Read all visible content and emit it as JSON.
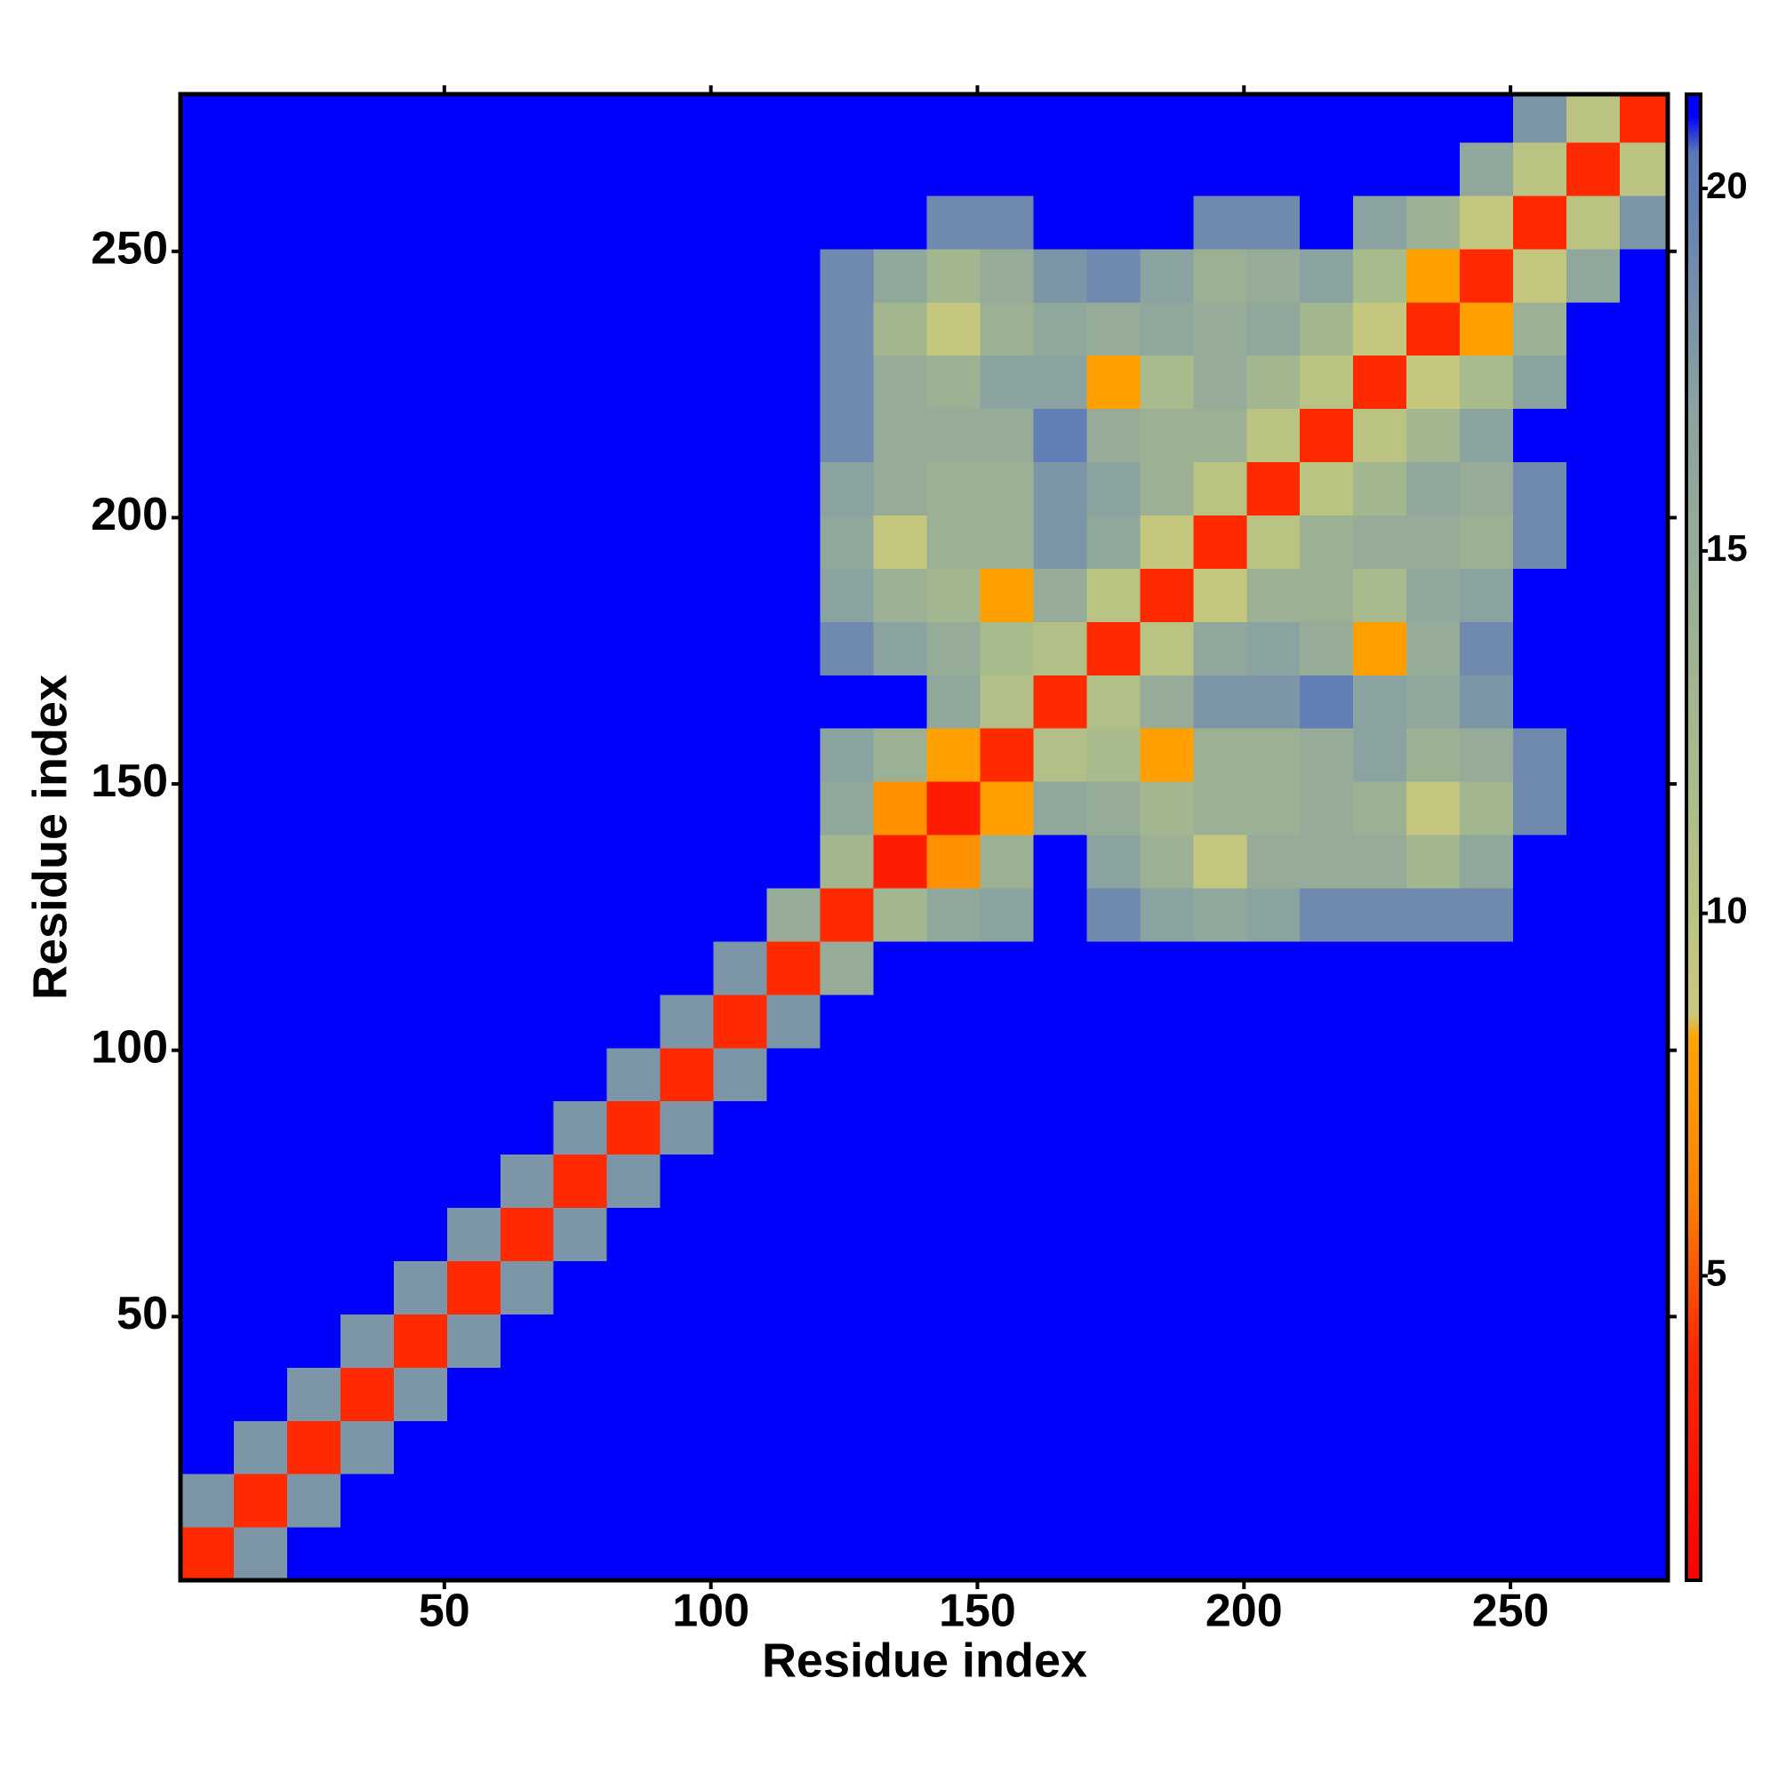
{
  "chart_data": {
    "type": "heatmap",
    "xlabel": "Residue index",
    "ylabel": "Residue index",
    "xlim": [
      0.5,
      279.5
    ],
    "ylim": [
      0.5,
      279.5
    ],
    "xticks": [
      50,
      100,
      150,
      200,
      250
    ],
    "yticks": [
      50,
      100,
      150,
      200,
      250
    ],
    "zlim": [
      0.8,
      21.3
    ],
    "zticks": [
      5,
      10,
      15,
      20
    ],
    "colorscale": [
      [
        0.8,
        "#ff0000"
      ],
      [
        4,
        "#ff2a00"
      ],
      [
        6,
        "#ff7f00"
      ],
      [
        8.3,
        "#ffa500"
      ],
      [
        8.6,
        "#c9c97c"
      ],
      [
        12,
        "#a8bb8c"
      ],
      [
        17,
        "#8aa2a0"
      ],
      [
        20.5,
        "#5a78b8"
      ],
      [
        21,
        "#0000ff"
      ]
    ],
    "x_bins": [
      0.5,
      10.5,
      20.5,
      30.5,
      40.5,
      50.5,
      60.5,
      70.5,
      80.5,
      90.5,
      100.5,
      110.5,
      120.5,
      130.5,
      140.5,
      150.5,
      160.5,
      170.5,
      180.5,
      190.5,
      200.5,
      210.5,
      220.5,
      230.5,
      240.5,
      250.5,
      260.5,
      270.5,
      279.5
    ],
    "y_bins": [
      0.5,
      10.5,
      20.5,
      30.5,
      40.5,
      50.5,
      60.5,
      70.5,
      80.5,
      90.5,
      100.5,
      110.5,
      120.5,
      130.5,
      140.5,
      150.5,
      160.5,
      170.5,
      180.5,
      190.5,
      200.5,
      210.5,
      220.5,
      230.5,
      240.5,
      250.5,
      260.5,
      270.5,
      279.5
    ],
    "z": [
      [
        4,
        18,
        21,
        21,
        21,
        21,
        21,
        21,
        21,
        21,
        21,
        21,
        21,
        21,
        21,
        21,
        21,
        21,
        21,
        21,
        21,
        21,
        21,
        21,
        21,
        21,
        21,
        21
      ],
      [
        18,
        4,
        18,
        21,
        21,
        21,
        21,
        21,
        21,
        21,
        21,
        21,
        21,
        21,
        21,
        21,
        21,
        21,
        21,
        21,
        21,
        21,
        21,
        21,
        21,
        21,
        21,
        21
      ],
      [
        21,
        18,
        4,
        18,
        21,
        21,
        21,
        21,
        21,
        21,
        21,
        21,
        21,
        21,
        21,
        21,
        21,
        21,
        21,
        21,
        21,
        21,
        21,
        21,
        21,
        21,
        21,
        21
      ],
      [
        21,
        21,
        18,
        4,
        18,
        21,
        21,
        21,
        21,
        21,
        21,
        21,
        21,
        21,
        21,
        21,
        21,
        21,
        21,
        21,
        21,
        21,
        21,
        21,
        21,
        21,
        21,
        21
      ],
      [
        21,
        21,
        21,
        18,
        4,
        18,
        21,
        21,
        21,
        21,
        21,
        21,
        21,
        21,
        21,
        21,
        21,
        21,
        21,
        21,
        21,
        21,
        21,
        21,
        21,
        21,
        21,
        21
      ],
      [
        21,
        21,
        21,
        21,
        18,
        4,
        18,
        21,
        21,
        21,
        21,
        21,
        21,
        21,
        21,
        21,
        21,
        21,
        21,
        21,
        21,
        21,
        21,
        21,
        21,
        21,
        21,
        21
      ],
      [
        21,
        21,
        21,
        21,
        21,
        18,
        4,
        18,
        21,
        21,
        21,
        21,
        21,
        21,
        21,
        21,
        21,
        21,
        21,
        21,
        21,
        21,
        21,
        21,
        21,
        21,
        21,
        21
      ],
      [
        21,
        21,
        21,
        21,
        21,
        21,
        18,
        4,
        18,
        21,
        21,
        21,
        21,
        21,
        21,
        21,
        21,
        21,
        21,
        21,
        21,
        21,
        21,
        21,
        21,
        21,
        21,
        21
      ],
      [
        21,
        21,
        21,
        21,
        21,
        21,
        21,
        18,
        4,
        18,
        21,
        21,
        21,
        21,
        21,
        21,
        21,
        21,
        21,
        21,
        21,
        21,
        21,
        21,
        21,
        21,
        21,
        21
      ],
      [
        21,
        21,
        21,
        21,
        21,
        21,
        21,
        21,
        18,
        4,
        18,
        21,
        21,
        21,
        21,
        21,
        21,
        21,
        21,
        21,
        21,
        21,
        21,
        21,
        21,
        21,
        21,
        21
      ],
      [
        21,
        21,
        21,
        21,
        21,
        21,
        21,
        21,
        21,
        18,
        4,
        18,
        21,
        21,
        21,
        21,
        21,
        21,
        21,
        21,
        21,
        21,
        21,
        21,
        21,
        21,
        21,
        21
      ],
      [
        21,
        21,
        21,
        21,
        21,
        21,
        21,
        21,
        21,
        21,
        18,
        4,
        15,
        21,
        21,
        21,
        21,
        21,
        21,
        21,
        21,
        21,
        21,
        21,
        21,
        21,
        21,
        21
      ],
      [
        21,
        21,
        21,
        21,
        21,
        21,
        21,
        21,
        21,
        21,
        21,
        15,
        4,
        13,
        16,
        17,
        21,
        19,
        17,
        16,
        17,
        19,
        19,
        19,
        19,
        21,
        21,
        21
      ],
      [
        21,
        21,
        21,
        21,
        21,
        21,
        21,
        21,
        21,
        21,
        21,
        21,
        13,
        3,
        7,
        14,
        21,
        17,
        14,
        9,
        15,
        15,
        15,
        13,
        16,
        21,
        21,
        21
      ],
      [
        21,
        21,
        21,
        21,
        21,
        21,
        21,
        21,
        21,
        21,
        21,
        21,
        16,
        7,
        3,
        8,
        16,
        15,
        13,
        14,
        14,
        15,
        14,
        9,
        13,
        19,
        21,
        21
      ],
      [
        21,
        21,
        21,
        21,
        21,
        21,
        21,
        21,
        21,
        21,
        21,
        21,
        17,
        14,
        8,
        4,
        11,
        12,
        8,
        14,
        14,
        15,
        17,
        14,
        15,
        19,
        21,
        21
      ],
      [
        21,
        21,
        21,
        21,
        21,
        21,
        21,
        21,
        21,
        21,
        21,
        21,
        21,
        21,
        16,
        11,
        4,
        11,
        15,
        18,
        18,
        20,
        17,
        16,
        18,
        21,
        21,
        21
      ],
      [
        21,
        21,
        21,
        21,
        21,
        21,
        21,
        21,
        21,
        21,
        21,
        21,
        19,
        17,
        15,
        12,
        11,
        4,
        10,
        16,
        17,
        15,
        8,
        15,
        19,
        21,
        21,
        21
      ],
      [
        21,
        21,
        21,
        21,
        21,
        21,
        21,
        21,
        21,
        21,
        21,
        21,
        17,
        14,
        13,
        8,
        15,
        10,
        4,
        9,
        14,
        14,
        12,
        16,
        17,
        21,
        21,
        21
      ],
      [
        21,
        21,
        21,
        21,
        21,
        21,
        21,
        21,
        21,
        21,
        21,
        21,
        16,
        9,
        14,
        14,
        18,
        16,
        9,
        4,
        10,
        14,
        15,
        15,
        14,
        19,
        21,
        21
      ],
      [
        21,
        21,
        21,
        21,
        21,
        21,
        21,
        21,
        21,
        21,
        21,
        21,
        17,
        15,
        14,
        14,
        18,
        17,
        14,
        10,
        4,
        10,
        13,
        16,
        15,
        19,
        21,
        21
      ],
      [
        21,
        21,
        21,
        21,
        21,
        21,
        21,
        21,
        21,
        21,
        21,
        21,
        19,
        15,
        15,
        15,
        20,
        15,
        14,
        14,
        10,
        4,
        10,
        13,
        17,
        21,
        21,
        21
      ],
      [
        21,
        21,
        21,
        21,
        21,
        21,
        21,
        21,
        21,
        21,
        21,
        21,
        19,
        15,
        14,
        17,
        17,
        8,
        12,
        15,
        13,
        10,
        4,
        9,
        12,
        17,
        21,
        21
      ],
      [
        21,
        21,
        21,
        21,
        21,
        21,
        21,
        21,
        21,
        21,
        21,
        21,
        19,
        13,
        9,
        14,
        16,
        15,
        16,
        15,
        16,
        13,
        9,
        4,
        8,
        14,
        21,
        21
      ],
      [
        21,
        21,
        21,
        21,
        21,
        21,
        21,
        21,
        21,
        21,
        21,
        21,
        19,
        16,
        13,
        15,
        18,
        19,
        17,
        14,
        15,
        17,
        12,
        8,
        4,
        9,
        16,
        21
      ],
      [
        21,
        21,
        21,
        21,
        21,
        21,
        21,
        21,
        21,
        21,
        21,
        21,
        21,
        21,
        19,
        19,
        21,
        21,
        21,
        19,
        19,
        21,
        17,
        14,
        9,
        4,
        10,
        18
      ],
      [
        21,
        21,
        21,
        21,
        21,
        21,
        21,
        21,
        21,
        21,
        21,
        21,
        21,
        21,
        21,
        21,
        21,
        21,
        21,
        21,
        21,
        21,
        21,
        21,
        16,
        10,
        4,
        10
      ],
      [
        21,
        21,
        21,
        21,
        21,
        21,
        21,
        21,
        21,
        21,
        21,
        21,
        21,
        21,
        21,
        21,
        21,
        21,
        21,
        21,
        21,
        21,
        21,
        21,
        21,
        18,
        10,
        4
      ]
    ]
  }
}
